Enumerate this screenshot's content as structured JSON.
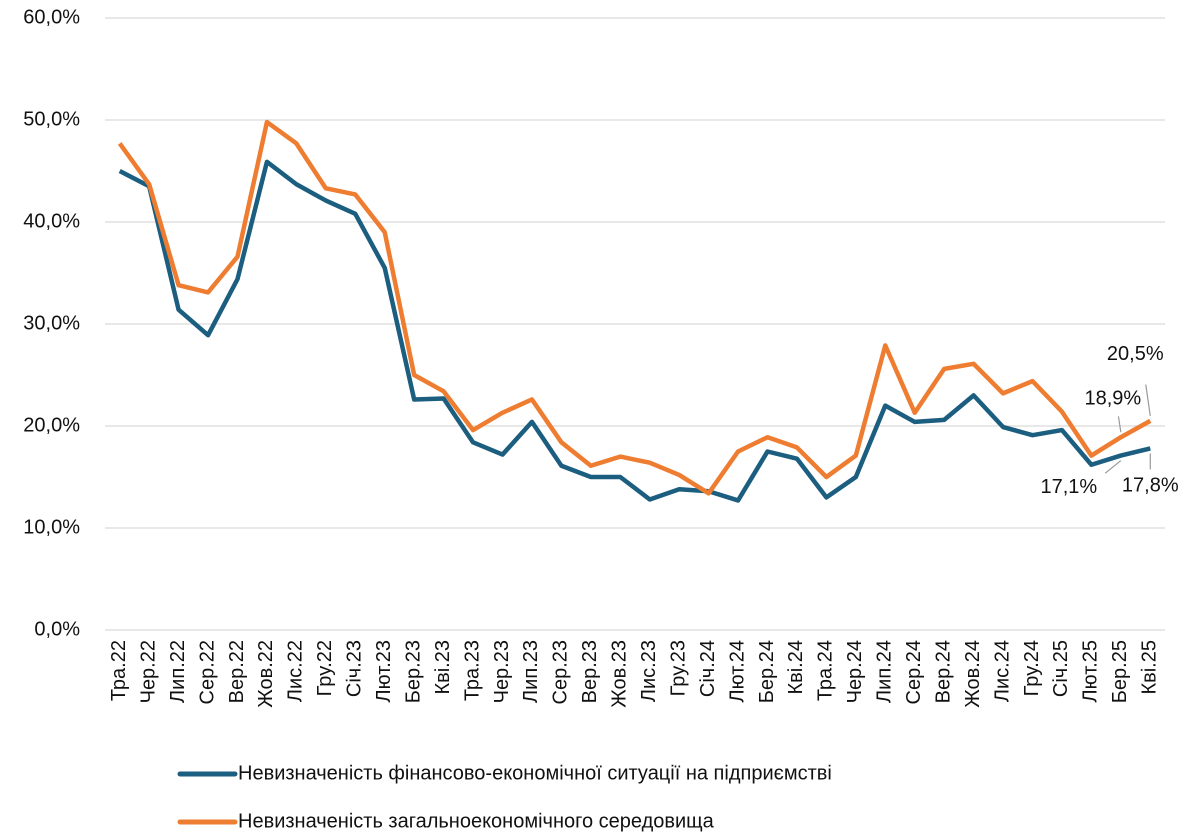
{
  "chart_data": {
    "type": "line",
    "categories": [
      "Тра.22",
      "Чер.22",
      "Лип.22",
      "Сер.22",
      "Вер.22",
      "Жов.22",
      "Лис.22",
      "Гру.22",
      "Січ.23",
      "Лют.23",
      "Бер.23",
      "Кві.23",
      "Тра.23",
      "Чер.23",
      "Лип.23",
      "Сер.23",
      "Вер.23",
      "Жов.23",
      "Лис.23",
      "Гру.23",
      "Січ.24",
      "Лют.24",
      "Бер.24",
      "Кві.24",
      "Тра.24",
      "Чер.24",
      "Лип.24",
      "Сер.24",
      "Вер.24",
      "Жов.24",
      "Лис.24",
      "Гру.24",
      "Січ.25",
      "Лют.25",
      "Бер.25",
      "Кві.25"
    ],
    "series": [
      {
        "name": "Невизначеність фінансово-економічної ситуації на підприємстві",
        "color": "#1b5e80",
        "values": [
          45.0,
          43.5,
          31.4,
          28.9,
          34.4,
          45.9,
          43.7,
          42.1,
          40.8,
          35.5,
          22.6,
          22.7,
          18.4,
          17.2,
          20.4,
          16.1,
          15.0,
          15.0,
          12.8,
          13.8,
          13.6,
          12.7,
          17.5,
          16.8,
          13.0,
          15.0,
          22.0,
          20.4,
          20.6,
          23.0,
          19.9,
          19.1,
          19.6,
          16.2,
          17.1,
          17.8
        ],
        "value_labels": [
          null,
          null,
          null,
          null,
          null,
          null,
          null,
          null,
          null,
          null,
          null,
          null,
          null,
          null,
          null,
          null,
          null,
          null,
          null,
          null,
          null,
          null,
          null,
          null,
          null,
          null,
          null,
          null,
          null,
          null,
          null,
          null,
          null,
          null,
          "17,1%",
          "17,8%"
        ]
      },
      {
        "name": "Невизначеність загальноекономічного середовища",
        "color": "#ee7d31",
        "values": [
          47.7,
          43.7,
          33.8,
          33.1,
          36.6,
          49.8,
          47.7,
          43.3,
          42.7,
          39.0,
          25.0,
          23.4,
          19.6,
          21.3,
          22.6,
          18.4,
          16.1,
          17.0,
          16.4,
          15.2,
          13.4,
          17.5,
          18.9,
          17.9,
          15.0,
          17.1,
          27.9,
          21.3,
          25.6,
          26.1,
          23.2,
          24.4,
          21.4,
          17.1,
          18.9,
          20.5
        ],
        "value_labels": [
          null,
          null,
          null,
          null,
          null,
          null,
          null,
          null,
          null,
          null,
          null,
          null,
          null,
          null,
          null,
          null,
          null,
          null,
          null,
          null,
          null,
          null,
          null,
          null,
          null,
          null,
          null,
          null,
          null,
          null,
          null,
          null,
          null,
          null,
          "18,9%",
          "20,5%"
        ]
      }
    ],
    "ylim": [
      0,
      60
    ],
    "yticks": [
      {
        "value": 0,
        "label": "0,0%"
      },
      {
        "value": 10,
        "label": "10,0%"
      },
      {
        "value": 20,
        "label": "20,0%"
      },
      {
        "value": 30,
        "label": "30,0%"
      },
      {
        "value": 40,
        "label": "40,0%"
      },
      {
        "value": 50,
        "label": "50,0%"
      },
      {
        "value": 60,
        "label": "60,0%"
      }
    ],
    "grid": true,
    "legend": "bottom"
  }
}
